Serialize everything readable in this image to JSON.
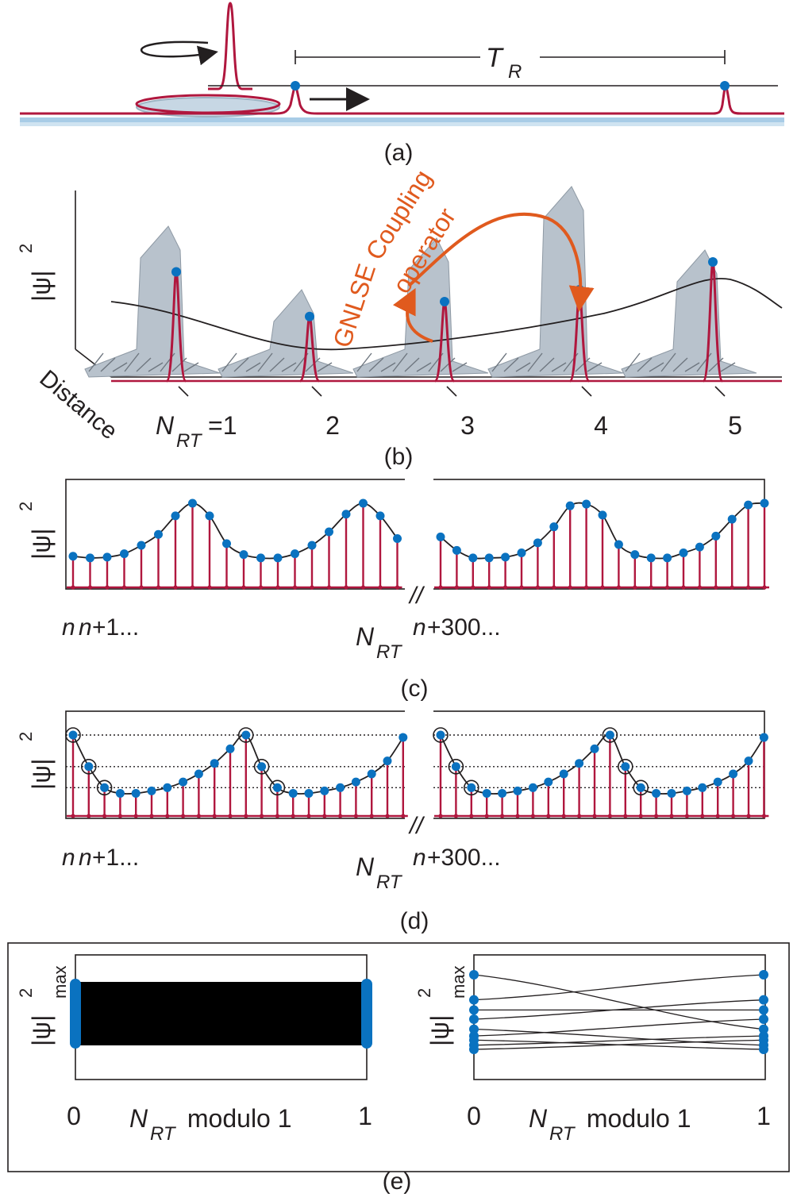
{
  "colors": {
    "pulse": "#b0173e",
    "marker": "#0a72c0",
    "annotation": "#e05a1e",
    "surface": "#b8c2cc",
    "waveguide": "#a8cce6",
    "ink": "#231f20"
  },
  "panel_a": {
    "caption": "(a)",
    "period_label": "T",
    "period_sub": "R"
  },
  "panel_b": {
    "caption": "(b)",
    "ylabel": "|ψ|",
    "ylabel_sup": "2",
    "depth_label": "Distance",
    "annotation_coupling_1": "Coupling",
    "annotation_coupling_2": "operator",
    "annotation_gnlse": "GNLSE",
    "round_trip_var": "N",
    "round_trip_sub": "RT",
    "round_trips": [
      "=1",
      "2",
      "3",
      "4",
      "5"
    ],
    "peak_values": [
      0.9,
      0.45,
      0.6,
      0.72,
      1.0
    ]
  },
  "panel_c": {
    "caption": "(c)",
    "ylabel": "|ψ|",
    "ylabel_sup": "2",
    "tick_left_1": "n",
    "tick_left_2": "n",
    "tick_left_3": "+1...",
    "xlabel_var": "N",
    "xlabel_sub": "RT",
    "tick_right_1": "n",
    "tick_right_2": "+300...",
    "break_mark": "//",
    "segment1": [
      0.37,
      0.35,
      0.36,
      0.4,
      0.5,
      0.63,
      0.85,
      1.0,
      0.85,
      0.52,
      0.39,
      0.35,
      0.35,
      0.4,
      0.5,
      0.66,
      0.87,
      1.0,
      0.85,
      0.58
    ],
    "segment2": [
      0.6,
      0.44,
      0.35,
      0.35,
      0.36,
      0.41,
      0.53,
      0.72,
      0.97,
      0.99,
      0.86,
      0.51,
      0.39,
      0.35,
      0.35,
      0.41,
      0.48,
      0.61,
      0.81,
      0.98,
      1.0
    ]
  },
  "panel_d": {
    "caption": "(d)",
    "ylabel": "|ψ|",
    "ylabel_sup": "2",
    "tick_left_1": "n",
    "tick_left_2": "n",
    "tick_left_3": "+1...",
    "xlabel_var": "N",
    "xlabel_sub": "RT",
    "tick_right_1": "n",
    "tick_right_2": "+300...",
    "break_mark": "//",
    "segment1": [
      1.0,
      0.61,
      0.35,
      0.28,
      0.28,
      0.31,
      0.35,
      0.42,
      0.52,
      0.65,
      0.83,
      1.0,
      0.61,
      0.35,
      0.28,
      0.28,
      0.31,
      0.35,
      0.42,
      0.52,
      0.68,
      0.97
    ],
    "segment2": [
      1.0,
      0.61,
      0.35,
      0.28,
      0.28,
      0.31,
      0.35,
      0.42,
      0.52,
      0.65,
      0.83,
      1.0,
      0.61,
      0.35,
      0.28,
      0.28,
      0.31,
      0.35,
      0.42,
      0.52,
      0.68,
      0.97
    ],
    "circled_indices": [
      0,
      1,
      2,
      11,
      12,
      13
    ],
    "reference_levels": [
      1.0,
      0.61,
      0.35
    ]
  },
  "panel_e": {
    "caption": "(e)",
    "ylabel": "|ψ|",
    "ylabel_sup": "2",
    "ylabel_sub": "max",
    "xlabel_var": "N",
    "xlabel_sub": "RT",
    "xlabel_text": " modulo 1",
    "tick_0": "0",
    "tick_1": "1",
    "right_levels": [
      1.0,
      0.7,
      0.58,
      0.47,
      0.35,
      0.27,
      0.22,
      0.16,
      0.11
    ]
  }
}
